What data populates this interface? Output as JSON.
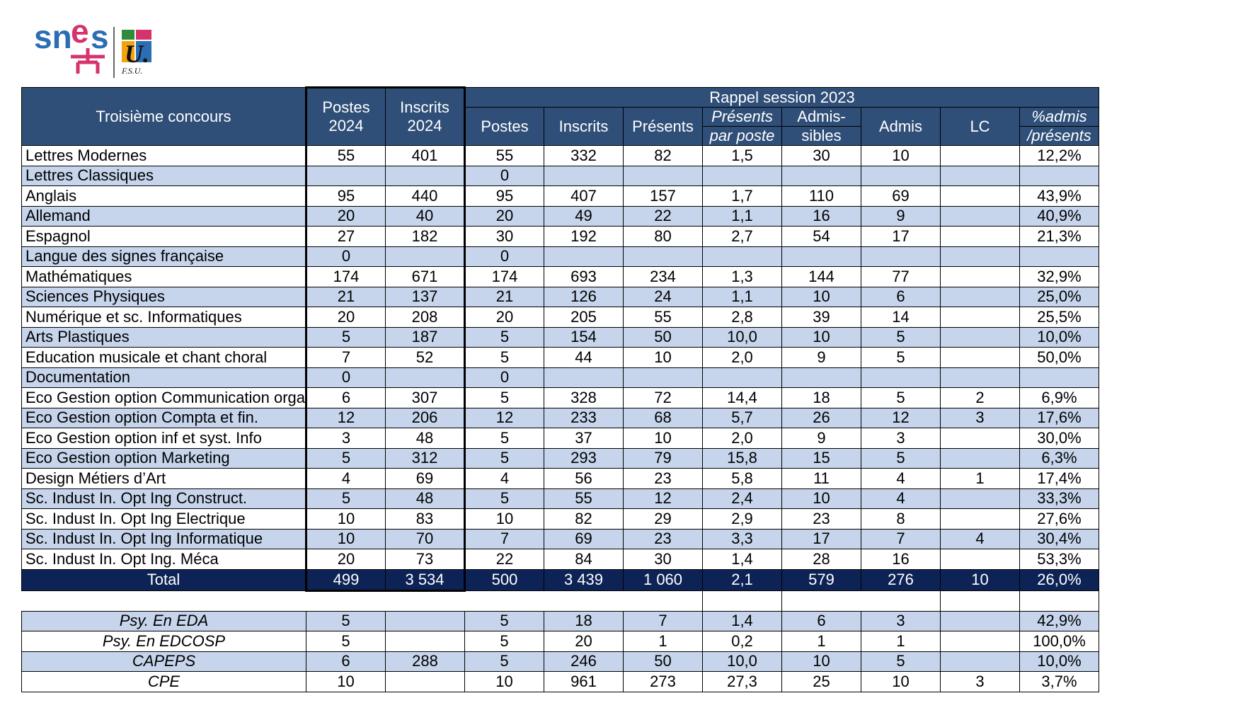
{
  "logo": {
    "name": "snes",
    "fsu_text": "F.S.U.",
    "u_text": "U."
  },
  "header": {
    "col_name": "Troisième concours",
    "postes_2024": "Postes 2024",
    "postes_2024_l1": "Postes",
    "postes_2024_l2": "2024",
    "inscrits_2024_l1": "Inscrits",
    "inscrits_2024_l2": "2024",
    "rappel": "Rappel session 2023",
    "postes": "Postes",
    "inscrits": "Inscrits",
    "presents": "Présents",
    "presents_par_poste_l1": "Présents",
    "presents_par_poste_l2": "par poste",
    "admissibles_l1": "Admis-",
    "admissibles_l2": "sibles",
    "admis": "Admis",
    "lc": "LC",
    "pct_l1": "%admis",
    "pct_l2": "/présents"
  },
  "rows": [
    {
      "name": "Lettres Modernes",
      "p24": "55",
      "i24": "401",
      "p": "55",
      "i": "332",
      "pr": "82",
      "ppp": "1,5",
      "adm": "30",
      "ad": "10",
      "lc": "",
      "pct": "12,2%"
    },
    {
      "name": "Lettres Classiques",
      "p24": "",
      "i24": "",
      "p": "0",
      "i": "",
      "pr": "",
      "ppp": "",
      "adm": "",
      "ad": "",
      "lc": "",
      "pct": ""
    },
    {
      "name": "Anglais",
      "p24": "95",
      "i24": "440",
      "p": "95",
      "i": "407",
      "pr": "157",
      "ppp": "1,7",
      "adm": "110",
      "ad": "69",
      "lc": "",
      "pct": "43,9%"
    },
    {
      "name": "Allemand",
      "p24": "20",
      "i24": "40",
      "p": "20",
      "i": "49",
      "pr": "22",
      "ppp": "1,1",
      "adm": "16",
      "ad": "9",
      "lc": "",
      "pct": "40,9%"
    },
    {
      "name": "Espagnol",
      "p24": "27",
      "i24": "182",
      "p": "30",
      "i": "192",
      "pr": "80",
      "ppp": "2,7",
      "adm": "54",
      "ad": "17",
      "lc": "",
      "pct": "21,3%"
    },
    {
      "name": "Langue des signes française",
      "p24": "0",
      "i24": "",
      "p": "0",
      "i": "",
      "pr": "",
      "ppp": "",
      "adm": "",
      "ad": "",
      "lc": "",
      "pct": ""
    },
    {
      "name": "Mathématiques",
      "p24": "174",
      "i24": "671",
      "p": "174",
      "i": "693",
      "pr": "234",
      "ppp": "1,3",
      "adm": "144",
      "ad": "77",
      "lc": "",
      "pct": "32,9%"
    },
    {
      "name": "Sciences Physiques",
      "p24": "21",
      "i24": "137",
      "p": "21",
      "i": "126",
      "pr": "24",
      "ppp": "1,1",
      "adm": "10",
      "ad": "6",
      "lc": "",
      "pct": "25,0%"
    },
    {
      "name": "Numérique et sc. Informatiques",
      "p24": "20",
      "i24": "208",
      "p": "20",
      "i": "205",
      "pr": "55",
      "ppp": "2,8",
      "adm": "39",
      "ad": "14",
      "lc": "",
      "pct": "25,5%"
    },
    {
      "name": "Arts Plastiques",
      "p24": "5",
      "i24": "187",
      "p": "5",
      "i": "154",
      "pr": "50",
      "ppp": "10,0",
      "adm": "10",
      "ad": "5",
      "lc": "",
      "pct": "10,0%"
    },
    {
      "name": "Education musicale et chant choral",
      "p24": "7",
      "i24": "52",
      "p": "5",
      "i": "44",
      "pr": "10",
      "ppp": "2,0",
      "adm": "9",
      "ad": "5",
      "lc": "",
      "pct": "50,0%"
    },
    {
      "name": "Documentation",
      "p24": "0",
      "i24": "",
      "p": "0",
      "i": "",
      "pr": "",
      "ppp": "",
      "adm": "",
      "ad": "",
      "lc": "",
      "pct": ""
    },
    {
      "name": "Eco Gestion option Communication orga",
      "p24": "6",
      "i24": "307",
      "p": "5",
      "i": "328",
      "pr": "72",
      "ppp": "14,4",
      "adm": "18",
      "ad": "5",
      "lc": "2",
      "pct": "6,9%"
    },
    {
      "name": "Eco Gestion option Compta et fin.",
      "p24": "12",
      "i24": "206",
      "p": "12",
      "i": "233",
      "pr": "68",
      "ppp": "5,7",
      "adm": "26",
      "ad": "12",
      "lc": "3",
      "pct": "17,6%"
    },
    {
      "name": "Eco Gestion option inf et syst. Info",
      "p24": "3",
      "i24": "48",
      "p": "5",
      "i": "37",
      "pr": "10",
      "ppp": "2,0",
      "adm": "9",
      "ad": "3",
      "lc": "",
      "pct": "30,0%"
    },
    {
      "name": "Eco Gestion option Marketing",
      "p24": "5",
      "i24": "312",
      "p": "5",
      "i": "293",
      "pr": "79",
      "ppp": "15,8",
      "adm": "15",
      "ad": "5",
      "lc": "",
      "pct": "6,3%"
    },
    {
      "name": "Design Métiers d’Art",
      "p24": "4",
      "i24": "69",
      "p": "4",
      "i": "56",
      "pr": "23",
      "ppp": "5,8",
      "adm": "11",
      "ad": "4",
      "lc": "1",
      "pct": "17,4%"
    },
    {
      "name": "Sc. Indust In. Opt Ing Construct.",
      "p24": "5",
      "i24": "48",
      "p": "5",
      "i": "55",
      "pr": "12",
      "ppp": "2,4",
      "adm": "10",
      "ad": "4",
      "lc": "",
      "pct": "33,3%"
    },
    {
      "name": "Sc. Indust In. Opt Ing Electrique",
      "p24": "10",
      "i24": "83",
      "p": "10",
      "i": "82",
      "pr": "29",
      "ppp": "2,9",
      "adm": "23",
      "ad": "8",
      "lc": "",
      "pct": "27,6%"
    },
    {
      "name": "Sc. Indust In. Opt Ing Informatique",
      "p24": "10",
      "i24": "70",
      "p": "7",
      "i": "69",
      "pr": "23",
      "ppp": "3,3",
      "adm": "17",
      "ad": "7",
      "lc": "4",
      "pct": "30,4%"
    },
    {
      "name": "Sc. Indust In. Opt Ing. Méca",
      "p24": "20",
      "i24": "73",
      "p": "22",
      "i": "84",
      "pr": "30",
      "ppp": "1,4",
      "adm": "28",
      "ad": "16",
      "lc": "",
      "pct": "53,3%"
    }
  ],
  "total": {
    "name": "Total",
    "p24": "499",
    "i24": "3 534",
    "p": "500",
    "i": "3 439",
    "pr": "1 060",
    "ppp": "2,1",
    "adm": "579",
    "ad": "276",
    "lc": "10",
    "pct": "26,0%"
  },
  "special": [
    {
      "name": "Psy. En EDA",
      "p24": "5",
      "i24": "",
      "p": "5",
      "i": "18",
      "pr": "7",
      "ppp": "1,4",
      "adm": "6",
      "ad": "3",
      "lc": "",
      "pct": "42,9%"
    },
    {
      "name": "Psy. En EDCOSP",
      "p24": "5",
      "i24": "",
      "p": "5",
      "i": "20",
      "pr": "1",
      "ppp": "0,2",
      "adm": "1",
      "ad": "1",
      "lc": "",
      "pct": "100,0%"
    },
    {
      "name": "CAPEPS",
      "p24": "6",
      "i24": "288",
      "p": "5",
      "i": "246",
      "pr": "50",
      "ppp": "10,0",
      "adm": "10",
      "ad": "5",
      "lc": "",
      "pct": "10,0%"
    },
    {
      "name": "CPE",
      "p24": "10",
      "i24": "",
      "p": "10",
      "i": "961",
      "pr": "273",
      "ppp": "27,3",
      "adm": "25",
      "ad": "10",
      "lc": "3",
      "pct": "3,7%"
    }
  ],
  "colors": {
    "header": "#2f4f78",
    "alt_row": "#c6d5ec",
    "total": "#0d2356"
  }
}
